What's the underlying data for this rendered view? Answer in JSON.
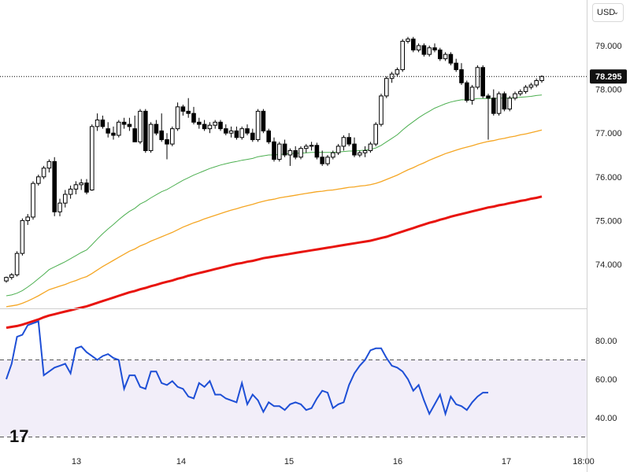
{
  "currency_selector": {
    "label": "USD",
    "icon": "chevron-down-icon"
  },
  "logo": {
    "text": "17",
    "name": "tradingview-logo"
  },
  "chart_data": [
    {
      "type": "candlestick",
      "title": "",
      "x_labels": [
        "13",
        "14",
        "15",
        "16",
        "17",
        "18:00"
      ],
      "y_ticks": [
        79.0,
        78.0,
        77.0,
        76.0,
        75.0,
        74.0
      ],
      "ylim": [
        73.0,
        79.9
      ],
      "last_price": 78.295,
      "last_price_label": "78.295",
      "grid": false,
      "candles": [
        [
          73.62,
          73.72,
          73.58,
          73.7
        ],
        [
          73.7,
          73.8,
          73.65,
          73.76
        ],
        [
          73.76,
          74.3,
          73.72,
          74.25
        ],
        [
          74.25,
          75.05,
          74.2,
          75.0
        ],
        [
          75.0,
          75.15,
          74.9,
          75.08
        ],
        [
          75.08,
          75.9,
          75.02,
          75.85
        ],
        [
          75.85,
          76.05,
          75.8,
          76.0
        ],
        [
          76.0,
          76.25,
          75.95,
          76.2
        ],
        [
          76.2,
          76.4,
          76.1,
          76.35
        ],
        [
          76.35,
          76.45,
          75.1,
          75.2
        ],
        [
          75.2,
          75.5,
          75.1,
          75.4
        ],
        [
          75.4,
          75.7,
          75.3,
          75.6
        ],
        [
          75.6,
          75.8,
          75.5,
          75.72
        ],
        [
          75.72,
          75.9,
          75.6,
          75.82
        ],
        [
          75.82,
          75.95,
          75.7,
          75.86
        ],
        [
          75.86,
          75.95,
          75.6,
          75.65
        ],
        [
          75.7,
          77.2,
          75.68,
          77.15
        ],
        [
          77.15,
          77.45,
          77.05,
          77.3
        ],
        [
          77.3,
          77.4,
          77.1,
          77.15
        ],
        [
          77.1,
          77.25,
          76.9,
          77.0
        ],
        [
          77.0,
          77.15,
          76.85,
          76.95
        ],
        [
          76.95,
          77.3,
          76.9,
          77.25
        ],
        [
          77.25,
          77.35,
          77.1,
          77.2
        ],
        [
          77.2,
          77.35,
          77.05,
          77.15
        ],
        [
          77.1,
          77.4,
          76.8,
          76.8
        ],
        [
          76.8,
          77.55,
          76.75,
          77.5
        ],
        [
          77.5,
          77.55,
          76.55,
          76.6
        ],
        [
          76.6,
          77.25,
          76.55,
          77.2
        ],
        [
          77.2,
          77.3,
          76.95,
          77.0
        ],
        [
          77.05,
          77.45,
          76.8,
          76.85
        ],
        [
          76.85,
          77.0,
          76.4,
          76.75
        ],
        [
          76.75,
          77.15,
          76.7,
          77.1
        ],
        [
          77.1,
          77.7,
          77.05,
          77.6
        ],
        [
          77.6,
          77.65,
          77.4,
          77.5
        ],
        [
          77.5,
          77.8,
          77.35,
          77.45
        ],
        [
          77.45,
          77.6,
          77.2,
          77.25
        ],
        [
          77.25,
          77.35,
          77.1,
          77.2
        ],
        [
          77.2,
          77.3,
          77.05,
          77.1
        ],
        [
          77.1,
          77.25,
          77.0,
          77.18
        ],
        [
          77.18,
          77.3,
          77.1,
          77.25
        ],
        [
          77.25,
          77.3,
          77.05,
          77.1
        ],
        [
          77.1,
          77.2,
          76.95,
          77.0
        ],
        [
          77.0,
          77.15,
          76.9,
          77.05
        ],
        [
          77.05,
          77.15,
          76.85,
          76.9
        ],
        [
          76.9,
          77.15,
          76.85,
          77.1
        ],
        [
          77.1,
          77.2,
          76.95,
          77.0
        ],
        [
          77.0,
          77.1,
          76.8,
          76.85
        ],
        [
          76.85,
          77.55,
          76.8,
          77.5
        ],
        [
          77.5,
          77.55,
          77.0,
          77.05
        ],
        [
          77.05,
          77.1,
          76.75,
          76.8
        ],
        [
          76.8,
          76.9,
          76.35,
          76.4
        ],
        [
          76.4,
          76.8,
          76.35,
          76.75
        ],
        [
          76.75,
          76.85,
          76.45,
          76.5
        ],
        [
          76.5,
          76.65,
          76.25,
          76.6
        ],
        [
          76.6,
          76.7,
          76.4,
          76.45
        ],
        [
          76.45,
          76.7,
          76.4,
          76.65
        ],
        [
          76.65,
          76.75,
          76.55,
          76.7
        ],
        [
          76.7,
          76.8,
          76.6,
          76.72
        ],
        [
          76.72,
          76.78,
          76.4,
          76.45
        ],
        [
          76.45,
          76.6,
          76.25,
          76.3
        ],
        [
          76.3,
          76.5,
          76.25,
          76.45
        ],
        [
          76.45,
          76.6,
          76.4,
          76.55
        ],
        [
          76.55,
          76.75,
          76.5,
          76.7
        ],
        [
          76.7,
          76.95,
          76.6,
          76.9
        ],
        [
          76.9,
          77.0,
          76.7,
          76.75
        ],
        [
          76.75,
          76.9,
          76.45,
          76.5
        ],
        [
          76.5,
          76.6,
          76.45,
          76.55
        ],
        [
          76.55,
          76.7,
          76.45,
          76.6
        ],
        [
          76.6,
          76.8,
          76.55,
          76.75
        ],
        [
          76.75,
          77.25,
          76.7,
          77.2
        ],
        [
          77.2,
          77.9,
          77.15,
          77.85
        ],
        [
          77.85,
          78.3,
          77.8,
          78.25
        ],
        [
          78.25,
          78.4,
          78.15,
          78.35
        ],
        [
          78.35,
          78.5,
          78.3,
          78.45
        ],
        [
          78.45,
          79.15,
          78.4,
          79.1
        ],
        [
          79.1,
          79.2,
          79.05,
          79.15
        ],
        [
          79.15,
          79.2,
          78.85,
          78.9
        ],
        [
          78.9,
          79.05,
          78.85,
          79.0
        ],
        [
          79.0,
          79.05,
          78.75,
          78.8
        ],
        [
          78.8,
          79.0,
          78.75,
          78.95
        ],
        [
          78.95,
          79.05,
          78.85,
          78.9
        ],
        [
          78.9,
          78.95,
          78.65,
          78.7
        ],
        [
          78.7,
          78.85,
          78.65,
          78.8
        ],
        [
          78.8,
          78.85,
          78.55,
          78.6
        ],
        [
          78.6,
          78.7,
          78.4,
          78.45
        ],
        [
          78.45,
          78.6,
          78.1,
          78.15
        ],
        [
          78.15,
          78.2,
          77.7,
          77.75
        ],
        [
          77.75,
          78.1,
          77.65,
          78.05
        ],
        [
          78.05,
          78.55,
          78.0,
          78.5
        ],
        [
          78.5,
          78.55,
          77.8,
          77.85
        ],
        [
          77.85,
          77.9,
          76.85,
          77.8
        ],
        [
          77.8,
          78.0,
          77.4,
          77.45
        ],
        [
          77.45,
          77.95,
          77.4,
          77.9
        ],
        [
          77.9,
          77.95,
          77.5,
          77.55
        ],
        [
          77.55,
          77.85,
          77.5,
          77.8
        ],
        [
          77.8,
          77.95,
          77.75,
          77.9
        ],
        [
          77.9,
          78.0,
          77.85,
          77.95
        ],
        [
          77.95,
          78.1,
          77.9,
          78.05
        ],
        [
          78.05,
          78.15,
          78.0,
          78.1
        ],
        [
          78.1,
          78.25,
          78.05,
          78.2
        ],
        [
          78.2,
          78.32,
          78.15,
          78.295
        ]
      ],
      "moving_averages": [
        {
          "color": "#4caf50",
          "values": [
            73.28,
            73.3,
            73.34,
            73.4,
            73.48,
            73.57,
            73.67,
            73.77,
            73.88,
            73.94,
            74.0,
            74.06,
            74.13,
            74.2,
            74.27,
            74.33,
            74.45,
            74.58,
            74.7,
            74.81,
            74.91,
            75.02,
            75.12,
            75.21,
            75.28,
            75.38,
            75.44,
            75.52,
            75.59,
            75.66,
            75.71,
            75.78,
            75.85,
            75.92,
            75.98,
            76.04,
            76.09,
            76.14,
            76.19,
            76.23,
            76.27,
            76.3,
            76.33,
            76.35,
            76.38,
            76.4,
            76.42,
            76.46,
            76.48,
            76.5,
            76.5,
            76.51,
            76.52,
            76.53,
            76.54,
            76.54,
            76.55,
            76.56,
            76.56,
            76.56,
            76.56,
            76.56,
            76.57,
            76.58,
            76.59,
            76.59,
            76.6,
            76.61,
            76.63,
            76.66,
            76.72,
            76.8,
            76.88,
            76.96,
            77.07,
            77.17,
            77.26,
            77.35,
            77.43,
            77.5,
            77.57,
            77.62,
            77.67,
            77.71,
            77.74,
            77.76,
            77.76,
            77.77,
            77.79,
            77.79,
            77.79,
            77.79,
            77.8,
            77.8,
            77.8,
            77.81,
            77.82,
            77.83,
            77.84,
            77.86,
            77.87
          ]
        },
        {
          "color": "#f5a623",
          "values": [
            73.03,
            73.05,
            73.07,
            73.11,
            73.16,
            73.22,
            73.28,
            73.35,
            73.42,
            73.46,
            73.5,
            73.54,
            73.59,
            73.63,
            73.68,
            73.72,
            73.79,
            73.87,
            73.95,
            74.02,
            74.09,
            74.16,
            74.23,
            74.3,
            74.35,
            74.42,
            74.47,
            74.53,
            74.58,
            74.63,
            74.68,
            74.73,
            74.79,
            74.85,
            74.9,
            74.95,
            74.99,
            75.04,
            75.08,
            75.12,
            75.16,
            75.2,
            75.24,
            75.27,
            75.31,
            75.34,
            75.37,
            75.41,
            75.44,
            75.47,
            75.49,
            75.52,
            75.54,
            75.56,
            75.58,
            75.6,
            75.62,
            75.64,
            75.66,
            75.67,
            75.69,
            75.7,
            75.72,
            75.74,
            75.76,
            75.77,
            75.79,
            75.8,
            75.82,
            75.85,
            75.89,
            75.94,
            75.99,
            76.04,
            76.1,
            76.16,
            76.21,
            76.27,
            76.32,
            76.38,
            76.43,
            76.48,
            76.53,
            76.57,
            76.61,
            76.65,
            76.68,
            76.71,
            76.75,
            76.78,
            76.81,
            76.83,
            76.86,
            76.88,
            76.91,
            76.93,
            76.96,
            76.98,
            77.01,
            77.04,
            77.07
          ]
        },
        {
          "color": "#e8140e",
          "values": [
            72.55,
            72.57,
            72.59,
            72.62,
            72.66,
            72.7,
            72.74,
            72.79,
            72.83,
            72.86,
            72.89,
            72.92,
            72.95,
            72.98,
            73.01,
            73.04,
            73.08,
            73.12,
            73.16,
            73.2,
            73.24,
            73.28,
            73.32,
            73.36,
            73.39,
            73.43,
            73.46,
            73.5,
            73.53,
            73.57,
            73.6,
            73.63,
            73.67,
            73.7,
            73.74,
            73.77,
            73.8,
            73.83,
            73.86,
            73.89,
            73.92,
            73.95,
            73.98,
            74.01,
            74.03,
            74.06,
            74.08,
            74.11,
            74.14,
            74.16,
            74.18,
            74.2,
            74.22,
            74.24,
            74.26,
            74.28,
            74.3,
            74.32,
            74.34,
            74.36,
            74.38,
            74.4,
            74.42,
            74.44,
            74.46,
            74.48,
            74.5,
            74.52,
            74.54,
            74.57,
            74.6,
            74.63,
            74.67,
            74.71,
            74.75,
            74.79,
            74.83,
            74.87,
            74.91,
            74.95,
            74.98,
            75.02,
            75.05,
            75.09,
            75.12,
            75.15,
            75.18,
            75.21,
            75.24,
            75.27,
            75.3,
            75.32,
            75.35,
            75.37,
            75.4,
            75.42,
            75.45,
            75.47,
            75.5,
            75.52,
            75.55
          ]
        }
      ]
    },
    {
      "type": "line",
      "title": "",
      "x_labels": [
        "13",
        "14",
        "15",
        "16",
        "17",
        "18:00"
      ],
      "y_ticks": [
        80.0,
        60.0,
        40.0
      ],
      "y_tick_labels": [
        "80.00",
        "60.00",
        "40.00"
      ],
      "ylim": [
        30,
        92
      ],
      "band": [
        30,
        70
      ],
      "series": [
        {
          "color": "#1e4fd6",
          "values": [
            60,
            68,
            82,
            83,
            88,
            89,
            90,
            62,
            64,
            66,
            67,
            68,
            63,
            76,
            77,
            74,
            72,
            70,
            72,
            73,
            71,
            70,
            55,
            62,
            62,
            56,
            55,
            64,
            64,
            58,
            57,
            59,
            56,
            55,
            51,
            50,
            58,
            56,
            59,
            52,
            52,
            50,
            49,
            48,
            58,
            47,
            52,
            49,
            43,
            48,
            46,
            46,
            44,
            47,
            48,
            47,
            44,
            45,
            50,
            54,
            53,
            45,
            47,
            48,
            57,
            63,
            67,
            70,
            75,
            76,
            76,
            71,
            67,
            66,
            64,
            60,
            54,
            57,
            49,
            42,
            47,
            52,
            42,
            51,
            47,
            46,
            44,
            48,
            51,
            53,
            53
          ]
        }
      ]
    }
  ]
}
